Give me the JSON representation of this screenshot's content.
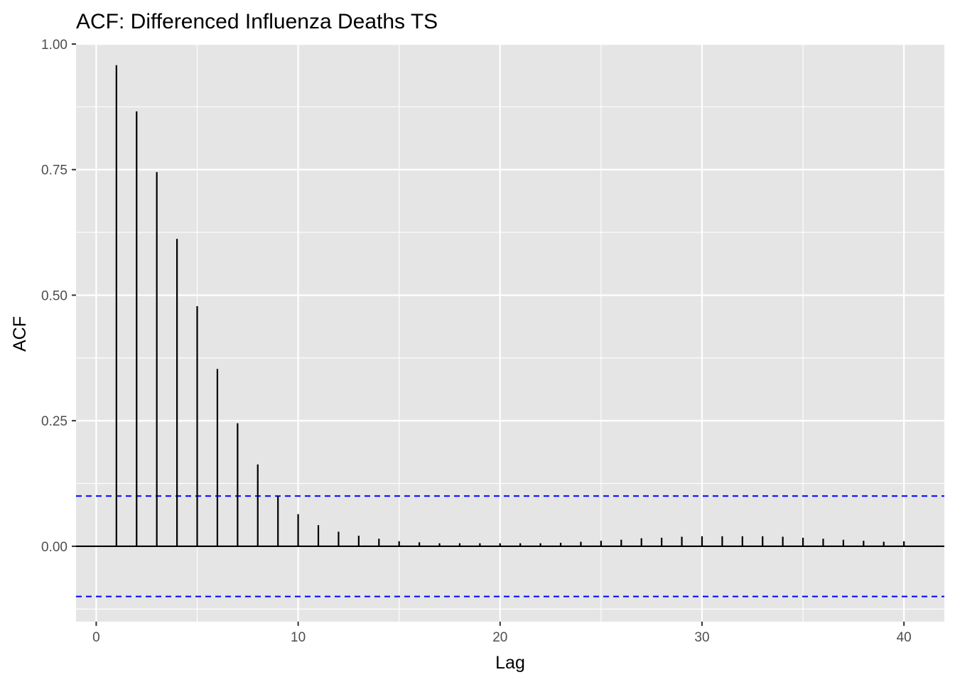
{
  "chart_data": {
    "type": "bar",
    "title": "ACF: Differenced Influenza Deaths TS",
    "xlabel": "Lag",
    "ylabel": "ACF",
    "xlim": [
      -1,
      42
    ],
    "ylim": [
      -0.15,
      1.0
    ],
    "x_ticks": [
      0,
      10,
      20,
      30,
      40
    ],
    "x_tick_labels": [
      "0",
      "10",
      "20",
      "30",
      "40"
    ],
    "y_ticks": [
      0.0,
      0.25,
      0.5,
      0.75,
      1.0
    ],
    "y_tick_labels": [
      "0.00",
      "0.25",
      "0.50",
      "0.75",
      "1.00"
    ],
    "grid": true,
    "confidence_bound": 0.1,
    "lags": [
      1,
      2,
      3,
      4,
      5,
      6,
      7,
      8,
      9,
      10,
      11,
      12,
      13,
      14,
      15,
      16,
      17,
      18,
      19,
      20,
      21,
      22,
      23,
      24,
      25,
      26,
      27,
      28,
      29,
      30,
      31,
      32,
      33,
      34,
      35,
      36,
      37,
      38,
      39,
      40
    ],
    "values": [
      0.958,
      0.866,
      0.745,
      0.612,
      0.478,
      0.353,
      0.245,
      0.163,
      0.1,
      0.064,
      0.042,
      0.029,
      0.021,
      0.015,
      0.01,
      0.008,
      0.006,
      0.006,
      0.006,
      0.006,
      0.006,
      0.006,
      0.007,
      0.009,
      0.011,
      0.013,
      0.016,
      0.017,
      0.019,
      0.02,
      0.02,
      0.02,
      0.02,
      0.019,
      0.017,
      0.015,
      0.013,
      0.011,
      0.009,
      0.01
    ],
    "colors": {
      "panel": "#e5e5e5",
      "grid": "#ffffff",
      "segment": "#000000",
      "bound": "#0000ff",
      "tick_text": "#4d4d4d"
    }
  }
}
